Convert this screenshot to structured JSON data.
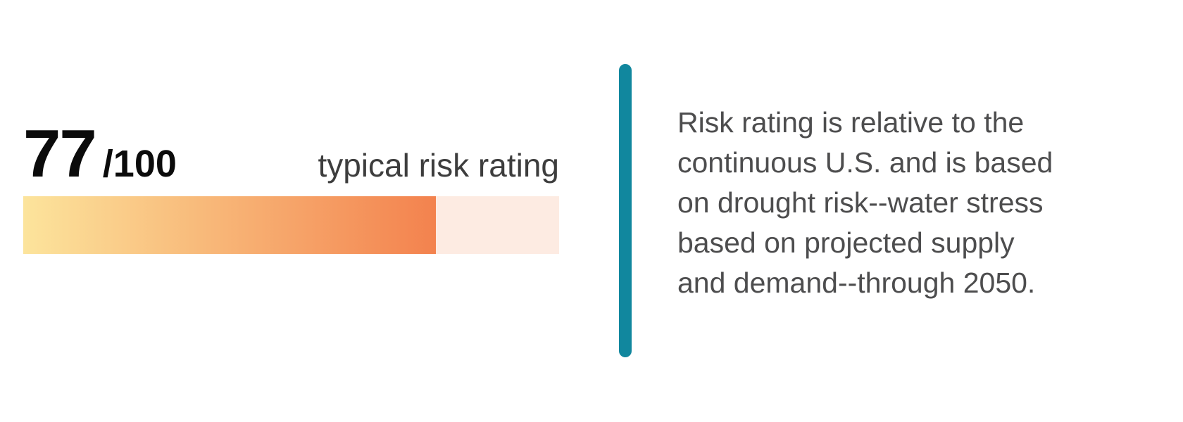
{
  "colors": {
    "accent_teal": "#11879e",
    "score_text": "#0b0b0b",
    "label_text": "#3d3d3d",
    "paragraph_text": "#4d4d4e",
    "bar_gradient_start": "#fce49c",
    "bar_gradient_end": "#f3824e",
    "bar_track": "#fdebe2"
  },
  "rating": {
    "score": "77",
    "denominator": "/100",
    "max": 100,
    "percent_filled": 77,
    "label": "typical risk rating"
  },
  "description": {
    "text": "Risk rating is relative to the\ncontinuous U.S. and is based\non drought risk--water stress\nbased on projected supply\nand demand--through 2050."
  }
}
